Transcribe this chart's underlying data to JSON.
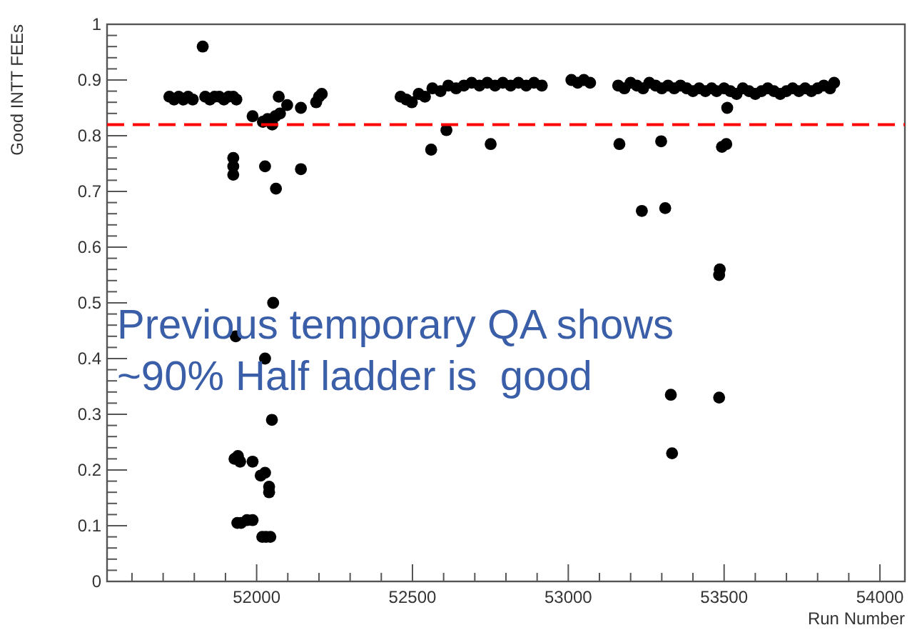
{
  "chart_data": {
    "type": "scatter",
    "xlabel": "Run Number",
    "ylabel": "Good INTT FEEs",
    "xlim": [
      51520,
      54080
    ],
    "ylim": [
      0,
      1
    ],
    "xticks": [
      {
        "value": 51600,
        "label": null
      },
      {
        "value": 51700,
        "label": null
      },
      {
        "value": 51800,
        "label": null
      },
      {
        "value": 51900,
        "label": null
      },
      52000,
      {
        "value": 52100,
        "label": null
      },
      {
        "value": 52200,
        "label": null
      },
      {
        "value": 52300,
        "label": null
      },
      {
        "value": 52400,
        "label": null
      },
      52500,
      {
        "value": 52600,
        "label": null
      },
      {
        "value": 52700,
        "label": null
      },
      {
        "value": 52800,
        "label": null
      },
      {
        "value": 52900,
        "label": null
      },
      53000,
      {
        "value": 53100,
        "label": null
      },
      {
        "value": 53200,
        "label": null
      },
      {
        "value": 53300,
        "label": null
      },
      {
        "value": 53400,
        "label": null
      },
      53500,
      {
        "value": 53600,
        "label": null
      },
      {
        "value": 53700,
        "label": null
      },
      {
        "value": 53800,
        "label": null
      },
      {
        "value": 53900,
        "label": null
      },
      54000
    ],
    "yticks": [
      0,
      {
        "value": 0.02,
        "label": null
      },
      {
        "value": 0.04,
        "label": null
      },
      {
        "value": 0.06,
        "label": null
      },
      {
        "value": 0.08,
        "label": null
      },
      0.1,
      {
        "value": 0.12,
        "label": null
      },
      {
        "value": 0.14,
        "label": null
      },
      {
        "value": 0.16,
        "label": null
      },
      {
        "value": 0.18,
        "label": null
      },
      0.2,
      {
        "value": 0.22,
        "label": null
      },
      {
        "value": 0.24,
        "label": null
      },
      {
        "value": 0.26,
        "label": null
      },
      {
        "value": 0.28,
        "label": null
      },
      0.3,
      {
        "value": 0.32,
        "label": null
      },
      {
        "value": 0.34,
        "label": null
      },
      {
        "value": 0.36,
        "label": null
      },
      {
        "value": 0.38,
        "label": null
      },
      0.4,
      {
        "value": 0.42,
        "label": null
      },
      {
        "value": 0.44,
        "label": null
      },
      {
        "value": 0.46,
        "label": null
      },
      {
        "value": 0.48,
        "label": null
      },
      0.5,
      {
        "value": 0.52,
        "label": null
      },
      {
        "value": 0.54,
        "label": null
      },
      {
        "value": 0.56,
        "label": null
      },
      {
        "value": 0.58,
        "label": null
      },
      0.6,
      {
        "value": 0.62,
        "label": null
      },
      {
        "value": 0.64,
        "label": null
      },
      {
        "value": 0.66,
        "label": null
      },
      {
        "value": 0.68,
        "label": null
      },
      0.7,
      {
        "value": 0.72,
        "label": null
      },
      {
        "value": 0.74,
        "label": null
      },
      {
        "value": 0.76,
        "label": null
      },
      {
        "value": 0.78,
        "label": null
      },
      0.8,
      {
        "value": 0.82,
        "label": null
      },
      {
        "value": 0.84,
        "label": null
      },
      {
        "value": 0.86,
        "label": null
      },
      {
        "value": 0.88,
        "label": null
      },
      0.9,
      {
        "value": 0.92,
        "label": null
      },
      {
        "value": 0.94,
        "label": null
      },
      {
        "value": 0.96,
        "label": null
      },
      {
        "value": 0.98,
        "label": null
      },
      1
    ],
    "grid": false,
    "marker": "circle",
    "ref_lines": [
      {
        "axis": "y",
        "value": 0.82,
        "color": "#ff0000",
        "line_style": "dashed"
      }
    ],
    "annotations": [
      "Previous temporary QA shows\n~90% Half ladder is  good"
    ],
    "series": [
      {
        "color": "#000000",
        "x": [
          51720,
          51735,
          51750,
          51765,
          51780,
          51795,
          51827,
          51835,
          51850,
          51865,
          51880,
          51895,
          51910,
          51925,
          51935,
          51925,
          51925,
          51925,
          51987,
          52027,
          52020,
          52035,
          52050,
          52060,
          52075,
          52071,
          52098,
          52142,
          52062,
          52142,
          52191,
          52200,
          52209,
          52053,
          51933,
          52027,
          52049,
          51929,
          51940,
          51947,
          51987,
          52013,
          52027,
          52040,
          52040,
          51938,
          51950,
          51969,
          51987,
          52018,
          52030,
          52044,
          52462,
          52480,
          52498,
          52520,
          52540,
          52564,
          52590,
          52615,
          52640,
          52665,
          52690,
          52715,
          52740,
          52765,
          52790,
          52815,
          52840,
          52865,
          52890,
          52915,
          53010,
          53030,
          53050,
          53070,
          53160,
          53180,
          53200,
          53220,
          53240,
          53260,
          53280,
          53300,
          53320,
          53340,
          53360,
          53380,
          53400,
          53420,
          53440,
          53460,
          53476,
          53500,
          53520,
          53540,
          53560,
          53580,
          53600,
          53620,
          53640,
          53660,
          53680,
          53700,
          53720,
          53740,
          53760,
          53780,
          53800,
          53820,
          53840,
          53853,
          52560,
          52609,
          52751,
          53164,
          53298,
          53236,
          53311,
          53493,
          53507,
          53484,
          53486,
          53510,
          53329,
          53484,
          53333
        ],
        "values": [
          0.87,
          0.865,
          0.87,
          0.865,
          0.87,
          0.865,
          0.96,
          0.87,
          0.865,
          0.87,
          0.87,
          0.865,
          0.87,
          0.87,
          0.865,
          0.73,
          0.745,
          0.76,
          0.835,
          0.745,
          0.825,
          0.83,
          0.82,
          0.835,
          0.84,
          0.87,
          0.855,
          0.85,
          0.705,
          0.74,
          0.86,
          0.87,
          0.875,
          0.5,
          0.44,
          0.4,
          0.29,
          0.22,
          0.225,
          0.215,
          0.215,
          0.19,
          0.195,
          0.17,
          0.16,
          0.105,
          0.105,
          0.11,
          0.11,
          0.08,
          0.08,
          0.08,
          0.87,
          0.865,
          0.86,
          0.875,
          0.87,
          0.885,
          0.88,
          0.89,
          0.885,
          0.89,
          0.895,
          0.89,
          0.895,
          0.89,
          0.895,
          0.89,
          0.895,
          0.89,
          0.895,
          0.89,
          0.9,
          0.895,
          0.9,
          0.895,
          0.89,
          0.885,
          0.895,
          0.89,
          0.885,
          0.895,
          0.89,
          0.885,
          0.89,
          0.885,
          0.89,
          0.885,
          0.88,
          0.885,
          0.88,
          0.885,
          0.88,
          0.885,
          0.88,
          0.875,
          0.885,
          0.88,
          0.875,
          0.88,
          0.885,
          0.88,
          0.875,
          0.88,
          0.885,
          0.88,
          0.885,
          0.88,
          0.885,
          0.89,
          0.885,
          0.895,
          0.775,
          0.81,
          0.785,
          0.785,
          0.79,
          0.665,
          0.67,
          0.78,
          0.785,
          0.55,
          0.56,
          0.85,
          0.335,
          0.33,
          0.23
        ]
      }
    ]
  }
}
